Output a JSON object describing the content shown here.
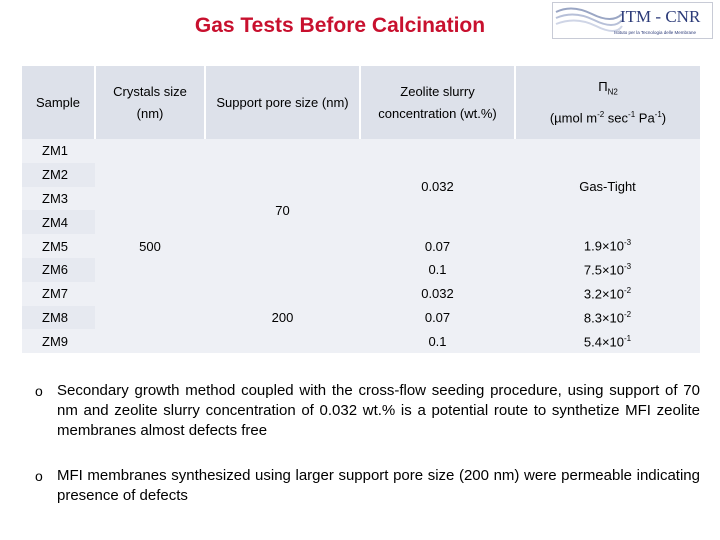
{
  "header": {
    "title": "Gas Tests Before Calcination",
    "logo": {
      "name": "ITM - CNR",
      "subtitle": "Istituto per la Tecnologia delle Membrane"
    }
  },
  "table": {
    "columns": [
      "Sample",
      "Crystals size (nm)",
      "Support pore size (nm)",
      "Zeolite slurry concentration (wt.%)"
    ],
    "permeance_header": {
      "symbol": "Π",
      "subscript": "N2",
      "unit": [
        "(µmol m",
        "-2",
        " sec",
        "-1",
        " Pa",
        "-1",
        ")"
      ]
    },
    "samples": [
      "ZM1",
      "ZM2",
      "ZM3",
      "ZM4",
      "ZM5",
      "ZM6",
      "ZM7",
      "ZM8",
      "ZM9"
    ],
    "crystals_size": 500,
    "support_pore_size": [
      70,
      200
    ],
    "zeolite_concentration": [
      0.032,
      0.07,
      0.1,
      0.032,
      0.07,
      0.1
    ],
    "permeance": [
      "Gas-Tight",
      {
        "mantissa": "1.9×10",
        "exponent": "-3"
      },
      {
        "mantissa": "7.5×10",
        "exponent": "-3"
      },
      {
        "mantissa": "3.2×10",
        "exponent": "-2"
      },
      {
        "mantissa": "8.3×10",
        "exponent": "-2"
      },
      {
        "mantissa": "5.4×10",
        "exponent": "-1"
      }
    ]
  },
  "bullets": [
    "Secondary growth method coupled with the cross-flow seeding procedure, using support of 70 nm and zeolite slurry concentration of 0.032 wt.% is a potential route to synthetize MFI zeolite membranes almost defects free",
    "MFI membranes synthesized using larger support pore size (200 nm) were permeable indicating presence of defects"
  ]
}
